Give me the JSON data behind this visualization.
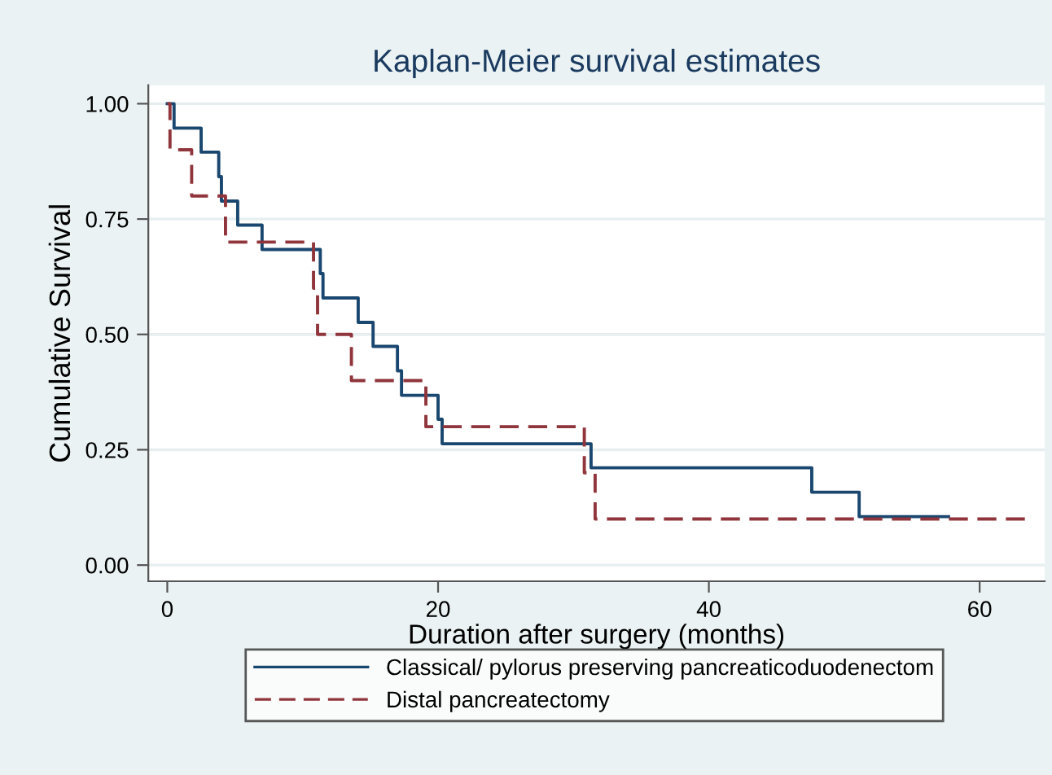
{
  "chart_data": {
    "type": "step",
    "title": "Kaplan-Meier survival estimates",
    "xlabel": "Duration after surgery (months)",
    "ylabel": "Cumulative Survival",
    "series": [
      {
        "name": "Classical/ pylorus preserving pancreaticoduodenectom",
        "color": "#1a476f",
        "line_style": "solid",
        "x": [
          0,
          0.5,
          2.5,
          3.8,
          4.0,
          5.2,
          7.0,
          11.3,
          11.5,
          14.1,
          15.2,
          17.0,
          17.3,
          20.0,
          20.3,
          31.3,
          47.6,
          51.1,
          57.7
        ],
        "values": [
          1.0,
          0.947,
          0.895,
          0.842,
          0.789,
          0.737,
          0.684,
          0.632,
          0.579,
          0.526,
          0.474,
          0.421,
          0.368,
          0.316,
          0.263,
          0.211,
          0.158,
          0.105,
          0.105
        ]
      },
      {
        "name": "Distal pancreatectomy",
        "color": "#90353b",
        "line_style": "dashed",
        "x": [
          0,
          0.2,
          1.8,
          4.3,
          10.8,
          11.1,
          13.6,
          19.1,
          30.8,
          31.6,
          63.6
        ],
        "values": [
          1.0,
          0.9,
          0.8,
          0.7,
          0.6,
          0.5,
          0.4,
          0.3,
          0.2,
          0.1,
          0.1
        ]
      }
    ],
    "xlim": [
      -1.4,
      64.8
    ],
    "ylim": [
      -0.035,
      1.04
    ],
    "xticks": [
      0,
      20,
      40,
      60
    ],
    "yticks": [
      {
        "value": 0,
        "label": "0.00"
      },
      {
        "value": 0.25,
        "label": "0.25"
      },
      {
        "value": 0.5,
        "label": "0.50"
      },
      {
        "value": 0.75,
        "label": "0.75"
      },
      {
        "value": 1,
        "label": "1.00"
      }
    ],
    "grid": "y",
    "legend": "bottom"
  }
}
